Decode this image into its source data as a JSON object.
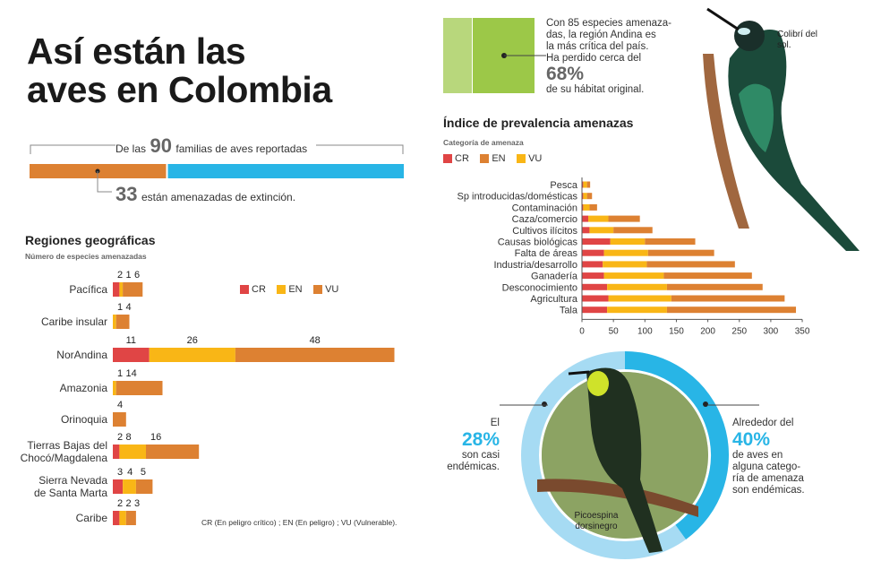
{
  "title": {
    "line1": "Así están las",
    "line2": "aves en Colombia"
  },
  "colors": {
    "CR": "#e04545",
    "EN": "#f9b616",
    "VU": "#dd8132",
    "blue": "#28b5e6",
    "green_light": "#b8d77c",
    "green": "#9cc848"
  },
  "families": {
    "prefix": "De las",
    "total": "90",
    "suffix": "familias de aves reportadas",
    "threatened": "33",
    "threatened_text": "están amenazadas de extinción."
  },
  "andina": {
    "line1": "Con 85 especies amenaza-",
    "line2": "das, la región Andina es",
    "line3": "la más crítica del país.",
    "line4": "Ha perdido cerca del",
    "pct": "68%",
    "line5": "de su hábitat original."
  },
  "photo_labels": {
    "hummingbird": "Colibrí del sol.",
    "picoespina_1": "Picoespina",
    "picoespina_2": "dorsinegro"
  },
  "endemic": {
    "left_pre": "El",
    "left_pct": "28%",
    "left_l1": "son casi",
    "left_l2": "endémicas.",
    "right_pre": "Alrededor del",
    "right_pct": "40%",
    "right_l1": "de aves en",
    "right_l2": "alguna catego-",
    "right_l3": "ría de amenaza",
    "right_l4": "son endémicas."
  },
  "chart_data": [
    {
      "type": "bar",
      "orientation": "horizontal",
      "stacked": true,
      "title": "Regiones geográficas",
      "subtitle": "Número de especies amenazadas",
      "legend": [
        "CR",
        "EN",
        "VU"
      ],
      "note": "CR (En peligro crítico) ; EN (En peligro) ; VU (Vulnerable).",
      "categories": [
        "Pacífica",
        "Caribe insular",
        "NorAndina",
        "Amazonia",
        "Orinoquia",
        "Tierras Bajas del Chocó/Magdalena",
        "Sierra Nevada de Santa Marta",
        "Caribe"
      ],
      "category_lines": [
        [
          "Pacífica"
        ],
        [
          "Caribe insular"
        ],
        [
          "NorAndina"
        ],
        [
          "Amazonia"
        ],
        [
          "Orinoquia"
        ],
        [
          "Tierras Bajas del",
          "Chocó/Magdalena"
        ],
        [
          "Sierra Nevada",
          "de Santa Marta"
        ],
        [
          "Caribe"
        ]
      ],
      "series": [
        {
          "name": "CR",
          "values": [
            2,
            0,
            11,
            0,
            0,
            2,
            3,
            2
          ]
        },
        {
          "name": "EN",
          "values": [
            1,
            1,
            26,
            1,
            0,
            8,
            4,
            2
          ]
        },
        {
          "name": "VU",
          "values": [
            6,
            4,
            48,
            14,
            4,
            16,
            5,
            3
          ]
        }
      ]
    },
    {
      "type": "bar",
      "orientation": "horizontal",
      "stacked": true,
      "title": "Índice de prevalencia amenazas",
      "subtitle": "Categoría de amenaza",
      "legend": [
        "CR",
        "EN",
        "VU"
      ],
      "categories": [
        "Pesca",
        "Sp introducidas/domésticas",
        "Contaminación",
        "Caza/comercio",
        "Cultivos ilícitos",
        "Causas biológicas",
        "Falta de áreas",
        "Industria/desarrollo",
        "Ganadería",
        "Desconocimiento",
        "Agricultura",
        "Tala"
      ],
      "series": [
        {
          "name": "CR",
          "values": [
            2,
            2,
            2,
            10,
            12,
            45,
            35,
            33,
            35,
            40,
            42,
            40
          ]
        },
        {
          "name": "EN",
          "values": [
            6,
            6,
            10,
            32,
            38,
            55,
            70,
            70,
            95,
            95,
            100,
            95
          ]
        },
        {
          "name": "VU",
          "values": [
            5,
            8,
            12,
            50,
            62,
            80,
            105,
            140,
            140,
            152,
            180,
            205
          ]
        }
      ],
      "xlim": [
        0,
        350
      ],
      "xticks": [
        "0",
        "50",
        "100",
        "150",
        "200",
        "250",
        "300",
        "350"
      ]
    },
    {
      "type": "bar",
      "stacked": true,
      "title": "",
      "series": [
        {
          "name": "amenazadas",
          "value": 33
        },
        {
          "name": "no amenazadas",
          "value": 57
        }
      ],
      "total": 90
    }
  ]
}
